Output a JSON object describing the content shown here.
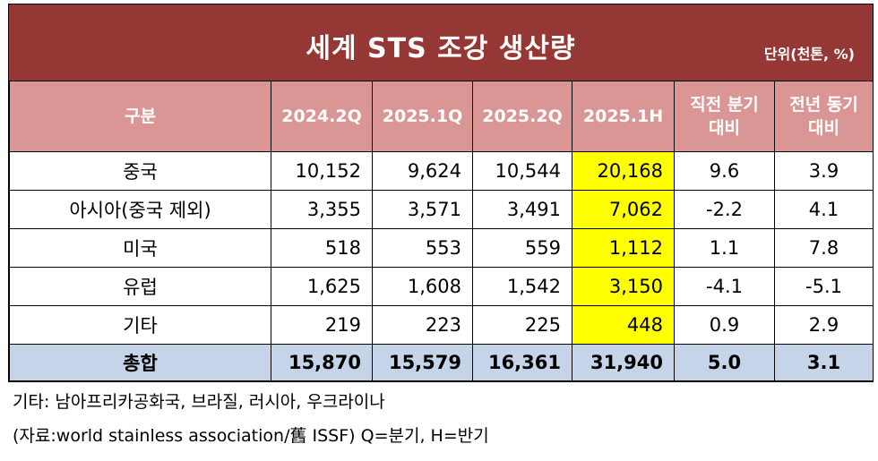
{
  "title": "세계 STS 조강 생산량",
  "unit": "단위(천톤, %)",
  "headers": [
    "구분",
    "2024.2Q",
    "2025.1Q",
    "2025.2Q",
    "2025.1H",
    "직전 분기\n대비",
    "전년 동기\n대비"
  ],
  "rows": [
    {
      "label": "중국",
      "q2024_2": "10,152",
      "q2025_1": "9,624",
      "q2025_2": "10,544",
      "h2025_1": "20,168",
      "qoq": "9.6",
      "yoy": "3.9"
    },
    {
      "label": "아시아(중국 제외)",
      "q2024_2": "3,355",
      "q2025_1": "3,571",
      "q2025_2": "3,491",
      "h2025_1": "7,062",
      "qoq": "-2.2",
      "yoy": "4.1"
    },
    {
      "label": "미국",
      "q2024_2": "518",
      "q2025_1": "553",
      "q2025_2": "559",
      "h2025_1": "1,112",
      "qoq": "1.1",
      "yoy": "7.8"
    },
    {
      "label": "유럽",
      "q2024_2": "1,625",
      "q2025_1": "1,608",
      "q2025_2": "1,542",
      "h2025_1": "3,150",
      "qoq": "-4.1",
      "yoy": "-5.1"
    },
    {
      "label": "기타",
      "q2024_2": "219",
      "q2025_1": "223",
      "q2025_2": "225",
      "h2025_1": "448",
      "qoq": "0.9",
      "yoy": "2.9"
    }
  ],
  "total": {
    "label": "총합",
    "q2024_2": "15,870",
    "q2025_1": "15,579",
    "q2025_2": "16,361",
    "h2025_1": "31,940",
    "qoq": "5.0",
    "yoy": "3.1"
  },
  "notes": [
    "기타: 남아프리카공화국, 브라질, 러시아, 우크라이나",
    "(자료:world stainless association/舊 ISSF) Q=분기, H=반기"
  ],
  "colors": {
    "title_bg": "#953735",
    "header_bg": "#da9694",
    "highlight": "#ffff00",
    "total_bg": "#c5d4e8"
  }
}
